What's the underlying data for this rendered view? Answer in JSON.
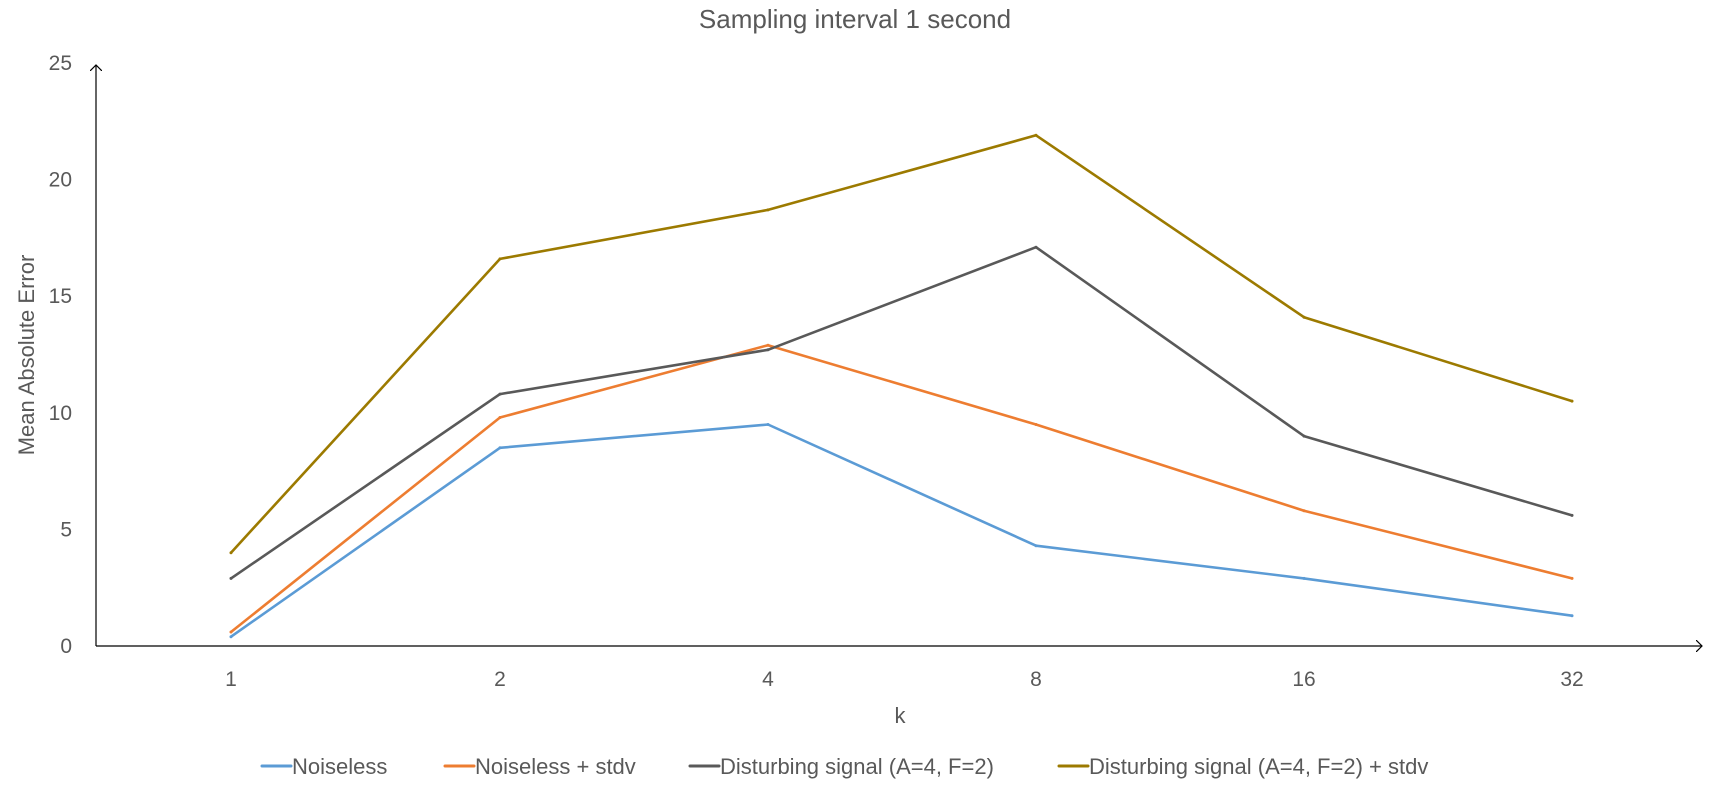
{
  "chart_data": {
    "type": "line",
    "title": "Sampling interval 1 second",
    "xlabel": "k",
    "ylabel": "Mean Absolute Error",
    "categories": [
      "1",
      "2",
      "4",
      "8",
      "16",
      "32"
    ],
    "ylim": [
      0,
      25
    ],
    "yticks": [
      "0",
      "5",
      "10",
      "15",
      "20",
      "25"
    ],
    "grid": false,
    "legend_position": "bottom",
    "series": [
      {
        "name": "Noiseless",
        "color": "#5B9BD5",
        "values": [
          0.4,
          8.5,
          9.5,
          4.3,
          2.9,
          1.3
        ]
      },
      {
        "name": "Noiseless + stdv",
        "color": "#ED7D31",
        "values": [
          0.6,
          9.8,
          12.9,
          9.5,
          5.8,
          2.9
        ]
      },
      {
        "name": "Disturbing signal (A=4, F=2)",
        "color": "#595959",
        "values": [
          2.9,
          10.8,
          12.7,
          17.1,
          9.0,
          5.6
        ]
      },
      {
        "name": "Disturbing signal (A=4, F=2) + stdv",
        "color": "#9C7A00",
        "values": [
          4.0,
          16.6,
          18.7,
          21.9,
          14.1,
          10.5
        ]
      }
    ]
  }
}
